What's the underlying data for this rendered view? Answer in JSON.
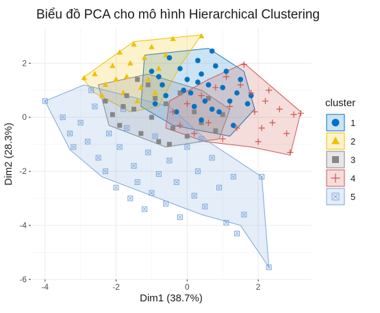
{
  "chart_data": {
    "type": "scatter",
    "title": "Biểu đồ PCA cho mô hình Hierarchical Clustering",
    "xlabel": "Dim1 (38.7%)",
    "ylabel": "Dim2 (28.3%)",
    "xlim": [
      -4.4,
      3.5
    ],
    "ylim": [
      -6.0,
      3.3
    ],
    "x_ticks": [
      -4,
      -2,
      0,
      2
    ],
    "y_ticks": [
      -6,
      -4,
      -2,
      0,
      2
    ],
    "x_tick_labels": [
      "-4",
      "-2",
      "0",
      "2"
    ],
    "y_tick_labels": [
      "-6",
      "-4",
      "-2",
      "0",
      "2"
    ],
    "grid": true,
    "legend": {
      "title": "cluster",
      "position": "right"
    },
    "series": [
      {
        "name": "1",
        "color": "#0073C2",
        "marker": "circle",
        "hull": [
          [
            -1.2,
            2.3
          ],
          [
            0.6,
            2.55
          ],
          [
            1.6,
            1.7
          ],
          [
            1.9,
            0.3
          ],
          [
            1.2,
            -0.7
          ],
          [
            -0.4,
            -0.3
          ],
          [
            -1.3,
            0.4
          ]
        ],
        "points": [
          [
            -1.0,
            1.7
          ],
          [
            -0.7,
            1.2
          ],
          [
            -0.5,
            2.2
          ],
          [
            -0.2,
            1.8
          ],
          [
            0.0,
            1.4
          ],
          [
            0.1,
            0.9
          ],
          [
            0.3,
            2.1
          ],
          [
            0.4,
            1.6
          ],
          [
            0.5,
            0.6
          ],
          [
            0.6,
            1.2
          ],
          [
            0.7,
            2.45
          ],
          [
            0.8,
            1.9
          ],
          [
            0.9,
            0.2
          ],
          [
            1.0,
            1.1
          ],
          [
            1.1,
            1.7
          ],
          [
            1.2,
            0.6
          ],
          [
            1.3,
            -0.3
          ],
          [
            1.4,
            0.9
          ],
          [
            1.5,
            1.4
          ],
          [
            1.7,
            0.5
          ],
          [
            -0.9,
            0.5
          ],
          [
            -0.6,
            0.8
          ],
          [
            -0.3,
            0.2
          ],
          [
            0.2,
            0.4
          ],
          [
            0.4,
            -0.1
          ],
          [
            0.7,
            0.3
          ],
          [
            -0.8,
            1.5
          ],
          [
            -0.1,
            1.0
          ],
          [
            0.3,
            1.3
          ],
          [
            1.8,
            0.8
          ]
        ]
      },
      {
        "name": "2",
        "color": "#EFC000",
        "marker": "triangle",
        "hull": [
          [
            -2.95,
            1.45
          ],
          [
            -1.5,
            2.8
          ],
          [
            0.4,
            3.05
          ],
          [
            -0.2,
            1.9
          ],
          [
            -0.8,
            0.4
          ],
          [
            -1.6,
            0.2
          ],
          [
            -2.6,
            0.9
          ]
        ],
        "points": [
          [
            -2.9,
            1.45
          ],
          [
            -2.6,
            1.6
          ],
          [
            -2.3,
            1.2
          ],
          [
            -2.1,
            1.9
          ],
          [
            -1.9,
            2.4
          ],
          [
            -1.7,
            1.5
          ],
          [
            -1.5,
            2.7
          ],
          [
            -1.3,
            1.1
          ],
          [
            -1.2,
            2.2
          ],
          [
            -1.0,
            2.6
          ],
          [
            -0.8,
            1.8
          ],
          [
            -0.6,
            2.3
          ],
          [
            -0.4,
            2.9
          ],
          [
            0.4,
            3.0
          ],
          [
            -1.8,
            0.9
          ],
          [
            -1.4,
            0.6
          ],
          [
            -1.1,
            1.4
          ],
          [
            -0.9,
            0.9
          ],
          [
            -2.4,
            0.8
          ],
          [
            -0.7,
            1.2
          ],
          [
            -2.0,
            1.4
          ],
          [
            -1.6,
            2.0
          ]
        ]
      },
      {
        "name": "3",
        "color": "#868686",
        "marker": "square",
        "hull": [
          [
            -2.5,
            1.2
          ],
          [
            -1.1,
            1.6
          ],
          [
            0.4,
            1.0
          ],
          [
            1.2,
            0.3
          ],
          [
            0.9,
            -0.8
          ],
          [
            -0.6,
            -1.1
          ],
          [
            -2.2,
            -0.3
          ]
        ],
        "points": [
          [
            -2.3,
            0.6
          ],
          [
            -2.1,
            0.1
          ],
          [
            -1.9,
            -0.3
          ],
          [
            -1.7,
            0.8
          ],
          [
            -1.5,
            0.3
          ],
          [
            -1.3,
            -0.6
          ],
          [
            -1.1,
            1.2
          ],
          [
            -1.0,
            0.0
          ],
          [
            -0.8,
            -0.9
          ],
          [
            -0.6,
            0.5
          ],
          [
            -0.4,
            -0.4
          ],
          [
            -0.2,
            0.9
          ],
          [
            0.0,
            -0.7
          ],
          [
            0.2,
            0.2
          ],
          [
            0.4,
            -0.2
          ],
          [
            0.6,
            0.7
          ],
          [
            0.8,
            -0.5
          ],
          [
            1.0,
            0.1
          ],
          [
            -1.4,
            1.4
          ],
          [
            -0.5,
            -1.0
          ],
          [
            -1.8,
            0.4
          ],
          [
            -0.9,
            0.7
          ]
        ]
      },
      {
        "name": "4",
        "color": "#CD534C",
        "marker": "plus",
        "hull": [
          [
            -0.5,
            0.6
          ],
          [
            0.6,
            1.4
          ],
          [
            1.6,
            2.0
          ],
          [
            2.4,
            1.1
          ],
          [
            3.2,
            0.2
          ],
          [
            2.9,
            -1.4
          ],
          [
            1.8,
            -1.1
          ],
          [
            0.5,
            -0.9
          ],
          [
            -0.6,
            -0.4
          ]
        ],
        "points": [
          [
            -0.4,
            0.2
          ],
          [
            -0.2,
            -0.3
          ],
          [
            0.0,
            0.5
          ],
          [
            0.2,
            -0.6
          ],
          [
            0.4,
            0.8
          ],
          [
            0.6,
            -0.2
          ],
          [
            0.8,
            1.1
          ],
          [
            1.0,
            -0.8
          ],
          [
            1.2,
            0.4
          ],
          [
            1.4,
            -0.4
          ],
          [
            1.6,
            1.95
          ],
          [
            1.8,
            0.9
          ],
          [
            2.0,
            -0.9
          ],
          [
            2.2,
            0.6
          ],
          [
            2.4,
            -0.2
          ],
          [
            2.6,
            0.3
          ],
          [
            2.8,
            -0.6
          ],
          [
            3.0,
            0.1
          ],
          [
            3.2,
            0.15
          ],
          [
            2.9,
            -1.3
          ],
          [
            2.3,
            1.0
          ],
          [
            1.9,
            0.2
          ],
          [
            1.5,
            1.2
          ],
          [
            2.1,
            -0.4
          ],
          [
            1.1,
            1.5
          ]
        ]
      },
      {
        "name": "5",
        "color": "#7AA6DC",
        "marker": "boxed-x",
        "hull": [
          [
            -4.0,
            0.6
          ],
          [
            -2.9,
            1.2
          ],
          [
            -0.5,
            0.4
          ],
          [
            0.6,
            -0.9
          ],
          [
            2.1,
            -2.2
          ],
          [
            2.3,
            -5.55
          ],
          [
            1.5,
            -4.0
          ],
          [
            0.4,
            -3.6
          ],
          [
            -2.4,
            -2.2
          ],
          [
            -3.3,
            -1.2
          ]
        ],
        "points": [
          [
            -4.0,
            0.6
          ],
          [
            -3.5,
            0.0
          ],
          [
            -3.2,
            -1.1
          ],
          [
            -3.0,
            -0.2
          ],
          [
            -2.8,
            -0.9
          ],
          [
            -2.6,
            0.4
          ],
          [
            -2.5,
            -1.5
          ],
          [
            -2.3,
            -2.0
          ],
          [
            -2.2,
            -0.6
          ],
          [
            -2.0,
            -2.6
          ],
          [
            -1.9,
            -1.1
          ],
          [
            -1.7,
            -0.4
          ],
          [
            -1.6,
            -3.0
          ],
          [
            -1.5,
            -1.8
          ],
          [
            -1.4,
            -2.4
          ],
          [
            -1.2,
            -3.4
          ],
          [
            -1.1,
            -1.3
          ],
          [
            -1.0,
            -2.8
          ],
          [
            -0.9,
            -0.7
          ],
          [
            -0.8,
            -2.1
          ],
          [
            -0.6,
            -3.2
          ],
          [
            -0.5,
            -1.6
          ],
          [
            -0.3,
            -2.4
          ],
          [
            -0.2,
            -3.7
          ],
          [
            0.0,
            -1.1
          ],
          [
            0.2,
            -2.9
          ],
          [
            0.3,
            -2.0
          ],
          [
            0.5,
            -3.3
          ],
          [
            0.7,
            -1.5
          ],
          [
            0.9,
            -2.6
          ],
          [
            1.1,
            -3.9
          ],
          [
            1.3,
            -2.2
          ],
          [
            1.6,
            -3.6
          ],
          [
            2.1,
            -2.2
          ],
          [
            2.3,
            -5.55
          ],
          [
            1.4,
            -4.3
          ],
          [
            -2.7,
            1.0
          ],
          [
            -1.8,
            0.3
          ],
          [
            -3.3,
            -0.6
          ],
          [
            0.4,
            -0.8
          ]
        ]
      }
    ]
  }
}
